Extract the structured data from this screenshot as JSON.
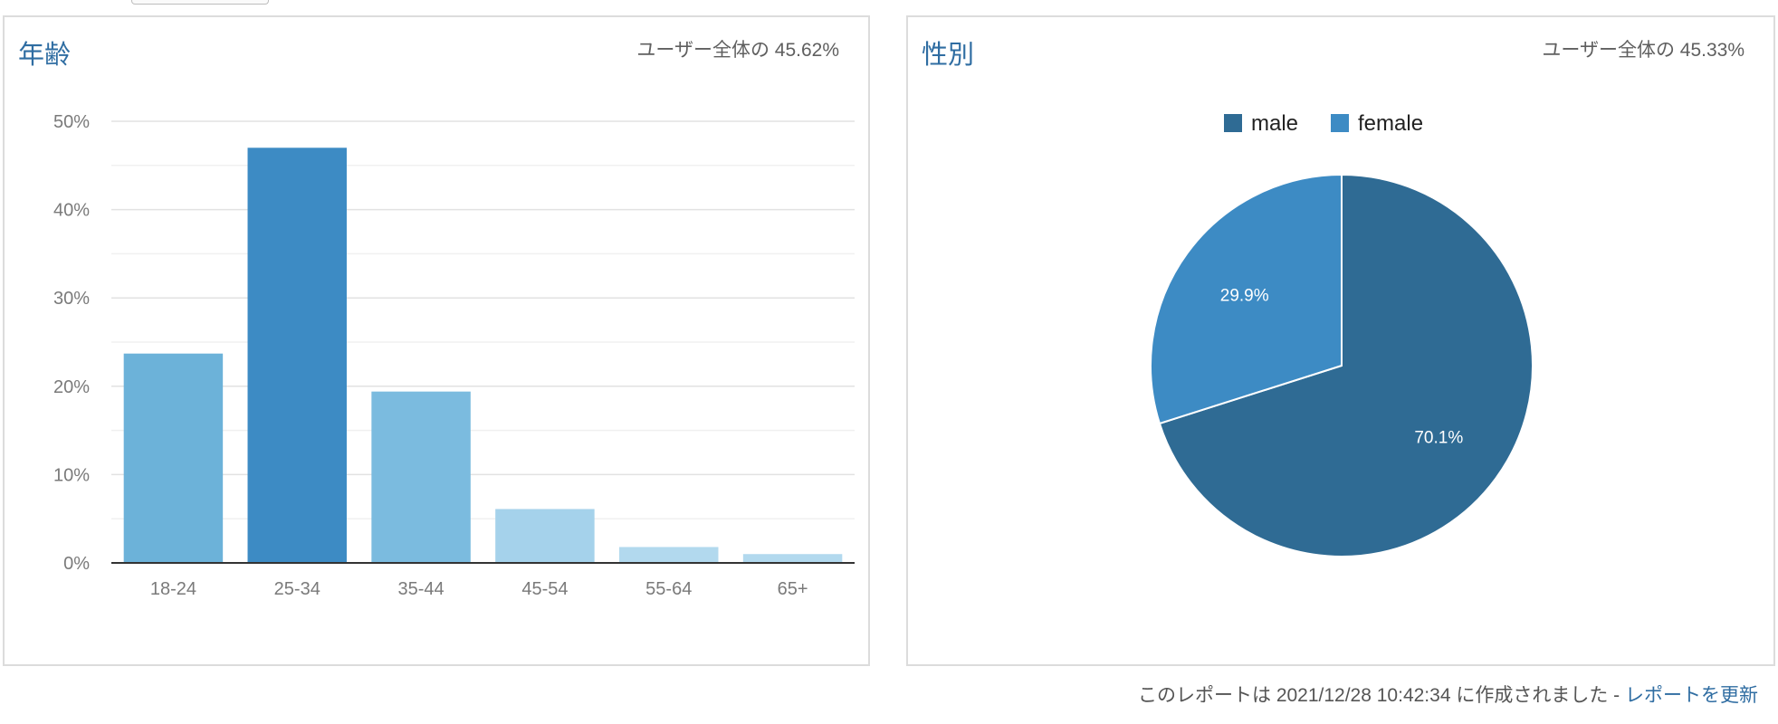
{
  "age_card": {
    "title": "年齢",
    "share": "ユーザー全体の 45.62%"
  },
  "gender_card": {
    "title": "性別",
    "share": "ユーザー全体の 45.33%"
  },
  "footer": {
    "text": "このレポートは 2021/12/28 10:42:34 に作成されました - ",
    "refresh_link": "レポートを更新"
  },
  "chart_data": [
    {
      "type": "bar",
      "categories": [
        "18-24",
        "25-34",
        "35-44",
        "45-54",
        "55-64",
        "65+"
      ],
      "values": [
        23.7,
        47.0,
        19.4,
        6.1,
        1.8,
        1.0
      ],
      "colors": [
        "#6cb2d9",
        "#3d8bc4",
        "#7bbbdf",
        "#a5d2eb",
        "#b2d9ee",
        "#b2d9ee"
      ],
      "ylim": [
        0,
        50
      ],
      "yticks": [
        "0%",
        "10%",
        "20%",
        "30%",
        "40%",
        "50%"
      ],
      "grid": true,
      "legend": "none"
    },
    {
      "type": "pie",
      "series": [
        {
          "name": "male",
          "value": 70.1,
          "label": "70.1%",
          "color": "#2f6b94"
        },
        {
          "name": "female",
          "value": 29.9,
          "label": "29.9%",
          "color": "#3d8bc4"
        }
      ],
      "legend": "top"
    }
  ]
}
